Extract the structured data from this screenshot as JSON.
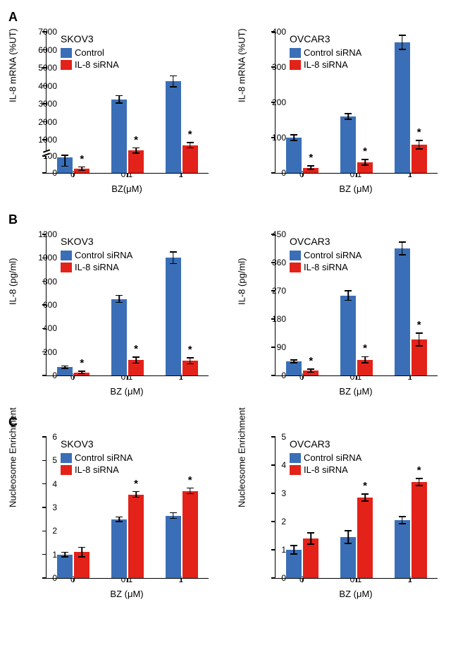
{
  "colors": {
    "control": "#3a6fb7",
    "sirna": "#e32219",
    "axis": "#000000",
    "bg": "#ffffff"
  },
  "typography": {
    "axis_label_size": 13,
    "tick_size": 12,
    "title_size": 14,
    "panel_label_size": 18
  },
  "panels": [
    {
      "id": "A",
      "charts": [
        {
          "cell": "SKOV3",
          "ylabel": "IL-8 mRNA (%UT)",
          "xlabel": "BZ(μM)",
          "legend": [
            "Control",
            "IL-8 siRNA"
          ],
          "x": [
            "0",
            "0.1",
            "1"
          ],
          "yticks": [
            0,
            100,
            1000,
            2000,
            3000,
            4000,
            5000,
            6000,
            7000
          ],
          "axis_break_after": 100,
          "control": {
            "values": [
              90,
              3250,
              4250
            ],
            "err": [
              50,
              200,
              300
            ]
          },
          "sirna": {
            "values": [
              25,
              400,
              700
            ],
            "err": [
              10,
              150,
              150
            ],
            "sig": [
              true,
              true,
              true
            ]
          }
        },
        {
          "cell": "OVCAR3",
          "ylabel": "IL-8 mRNA (%UT)",
          "xlabel": "BZ (μM)",
          "legend": [
            "Control siRNA",
            "IL-8 siRNA"
          ],
          "x": [
            "0",
            "0.1",
            "1"
          ],
          "yticks": [
            0,
            100,
            200,
            300,
            400
          ],
          "control": {
            "values": [
              100,
              160,
              370
            ],
            "err": [
              8,
              8,
              20
            ]
          },
          "sirna": {
            "values": [
              15,
              30,
              80
            ],
            "err": [
              5,
              8,
              12
            ],
            "sig": [
              true,
              true,
              true
            ]
          }
        }
      ]
    },
    {
      "id": "B",
      "charts": [
        {
          "cell": "SKOV3",
          "ylabel": "IL-8 (pg/ml)",
          "xlabel": "BZ (μM)",
          "legend": [
            "Control siRNA",
            "IL-8 siRNA"
          ],
          "x": [
            "0",
            "0.1",
            "1"
          ],
          "yticks": [
            0,
            200,
            400,
            600,
            800,
            1000,
            1200
          ],
          "control": {
            "values": [
              70,
              650,
              1000
            ],
            "err": [
              10,
              30,
              50
            ]
          },
          "sirna": {
            "values": [
              25,
              130,
              125
            ],
            "err": [
              10,
              25,
              25
            ],
            "sig": [
              true,
              true,
              true
            ]
          }
        },
        {
          "cell": "OVCAR3",
          "ylabel": "IL-8 (pg/ml)",
          "xlabel": "BZ (μM)",
          "legend": [
            "Control siRNA",
            "IL-8 siRNA"
          ],
          "x": [
            "0",
            "0.1",
            "1"
          ],
          "yticks": [
            0,
            90,
            180,
            270,
            360,
            450
          ],
          "control": {
            "values": [
              45,
              255,
              405
            ],
            "err": [
              5,
              15,
              20
            ]
          },
          "sirna": {
            "values": [
              15,
              50,
              115
            ],
            "err": [
              5,
              10,
              20
            ],
            "sig": [
              true,
              true,
              true
            ]
          }
        }
      ]
    },
    {
      "id": "C",
      "charts": [
        {
          "cell": "SKOV3",
          "ylabel": "Nucleosome Enrichment",
          "xlabel": "BZ (μM)",
          "legend": [
            "Control siRNA",
            "IL-8 siRNA"
          ],
          "x": [
            "0",
            "0.1",
            "1"
          ],
          "yticks": [
            0,
            1,
            2,
            3,
            4,
            5,
            6
          ],
          "control": {
            "values": [
              1.0,
              2.5,
              2.65
            ],
            "err": [
              0.1,
              0.1,
              0.12
            ]
          },
          "sirna": {
            "values": [
              1.1,
              3.55,
              3.7
            ],
            "err": [
              0.2,
              0.12,
              0.12
            ],
            "sig": [
              false,
              true,
              true
            ]
          }
        },
        {
          "cell": "OVCAR3",
          "ylabel": "Nucleosome Enrichment",
          "xlabel": "BZ (μM)",
          "legend": [
            "Control siRNA",
            "IL-8 siRNA"
          ],
          "x": [
            "0",
            "0.1",
            "1"
          ],
          "yticks": [
            0,
            1,
            2,
            3,
            4,
            5
          ],
          "control": {
            "values": [
              1.0,
              1.45,
              2.05
            ],
            "err": [
              0.15,
              0.22,
              0.12
            ]
          },
          "sirna": {
            "values": [
              1.4,
              2.85,
              3.4
            ],
            "err": [
              0.2,
              0.12,
              0.12
            ],
            "sig": [
              false,
              true,
              true
            ]
          }
        }
      ]
    }
  ]
}
